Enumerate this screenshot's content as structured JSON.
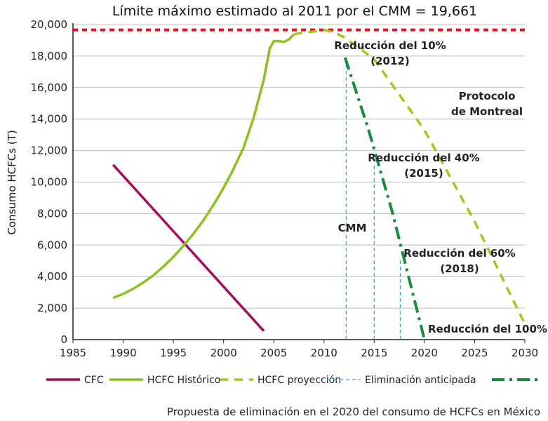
{
  "chart_data": {
    "type": "line",
    "title": "Límite máximo estimado al 2011 por el CMM = 19,661",
    "ylabel": "Consumo HCFCs (T)",
    "xlabel": "",
    "xlim": [
      1985,
      2030
    ],
    "ylim": [
      0,
      20000
    ],
    "x_ticks": [
      "1985",
      "1990",
      "1995",
      "2000",
      "2005",
      "2010",
      "2015",
      "2020",
      "2025",
      "2030"
    ],
    "y_ticks": [
      "0",
      "2,000",
      "4,000",
      "6,000",
      "8,000",
      "10,000",
      "12,000",
      "14,000",
      "16,000",
      "18,000",
      "20,000"
    ],
    "grid": "horizontal",
    "legend_position": "bottom",
    "limit_value": 19661,
    "colors": {
      "limit": "#e3101e",
      "cfc": "#a50d5a",
      "hcfc_hist": "#8cc11f",
      "hcfc_proj": "#a9c41f",
      "elim": "#28b0d8",
      "cmm": "#1a8a3c",
      "montreal_text": "#b5b51a"
    },
    "series": [
      {
        "name": "CFC",
        "key": "cfc",
        "points": [
          [
            1989,
            11100
          ],
          [
            2004,
            550
          ]
        ]
      },
      {
        "name": "HCFC Histórico",
        "key": "hcfc_hist",
        "points": [
          [
            1989,
            2650
          ],
          [
            1990,
            2900
          ],
          [
            1991,
            3230
          ],
          [
            1992,
            3620
          ],
          [
            1993,
            4080
          ],
          [
            1994,
            4630
          ],
          [
            1995,
            5250
          ],
          [
            1996,
            5950
          ],
          [
            1997,
            6720
          ],
          [
            1998,
            7580
          ],
          [
            1999,
            8560
          ],
          [
            2000,
            9640
          ],
          [
            2001,
            10850
          ],
          [
            2002,
            12200
          ],
          [
            2003,
            14100
          ],
          [
            2004,
            16500
          ],
          [
            2004.6,
            18500
          ],
          [
            2005,
            18950
          ],
          [
            2005.5,
            18950
          ],
          [
            2006,
            18900
          ],
          [
            2006.5,
            19050
          ],
          [
            2007,
            19380
          ]
        ]
      },
      {
        "name": "HCFC proyección",
        "key": "hcfc_proj",
        "points": [
          [
            2007,
            19380
          ],
          [
            2008,
            19500
          ],
          [
            2009,
            19560
          ],
          [
            2010,
            19660
          ],
          [
            2011,
            19500
          ],
          [
            2012,
            19200
          ],
          [
            2015,
            17800
          ],
          [
            2020,
            13300
          ],
          [
            2025,
            7500
          ],
          [
            2030,
            1000
          ]
        ]
      },
      {
        "name": "Eliminación anticipada",
        "key": "elim",
        "segments": [
          [
            [
              2012.2,
              0
            ],
            [
              2012.2,
              17600
            ]
          ],
          [
            [
              2015,
              0
            ],
            [
              2015,
              11200
            ]
          ],
          [
            [
              2017.6,
              0
            ],
            [
              2017.6,
              5100
            ]
          ]
        ]
      },
      {
        "name": "",
        "key": "cmm",
        "points": [
          [
            2012.1,
            17900
          ],
          [
            2014.4,
            13400
          ],
          [
            2016.8,
            8100
          ],
          [
            2020,
            0
          ]
        ]
      }
    ],
    "limit_label": "",
    "annotations": [
      {
        "key": "red10",
        "line1": "Reducción del 10%",
        "line2": "(2012)"
      },
      {
        "key": "red40",
        "line1": "Reducción del 40%",
        "line2": "(2015)"
      },
      {
        "key": "red60",
        "line1": "Reducción del 60%",
        "line2": "(2018)"
      },
      {
        "key": "red100",
        "line1": "Reducción del 100%",
        "line2": ""
      },
      {
        "key": "montreal",
        "line1": "Protocolo",
        "line2": "de Montreal"
      },
      {
        "key": "cmm",
        "line1": "CMM",
        "line2": ""
      }
    ],
    "legend": [
      {
        "label": "CFC",
        "key": "cfc"
      },
      {
        "label": "HCFC Histórico",
        "key": "hcfc_hist"
      },
      {
        "label": "HCFC proyección",
        "key": "hcfc_proj"
      },
      {
        "label": "Eliminación anticipada",
        "key": "elim"
      },
      {
        "label": "",
        "key": "cmm"
      }
    ]
  },
  "caption": "Propuesta de eliminación en el 2020 del consumo de HCFCs en México"
}
